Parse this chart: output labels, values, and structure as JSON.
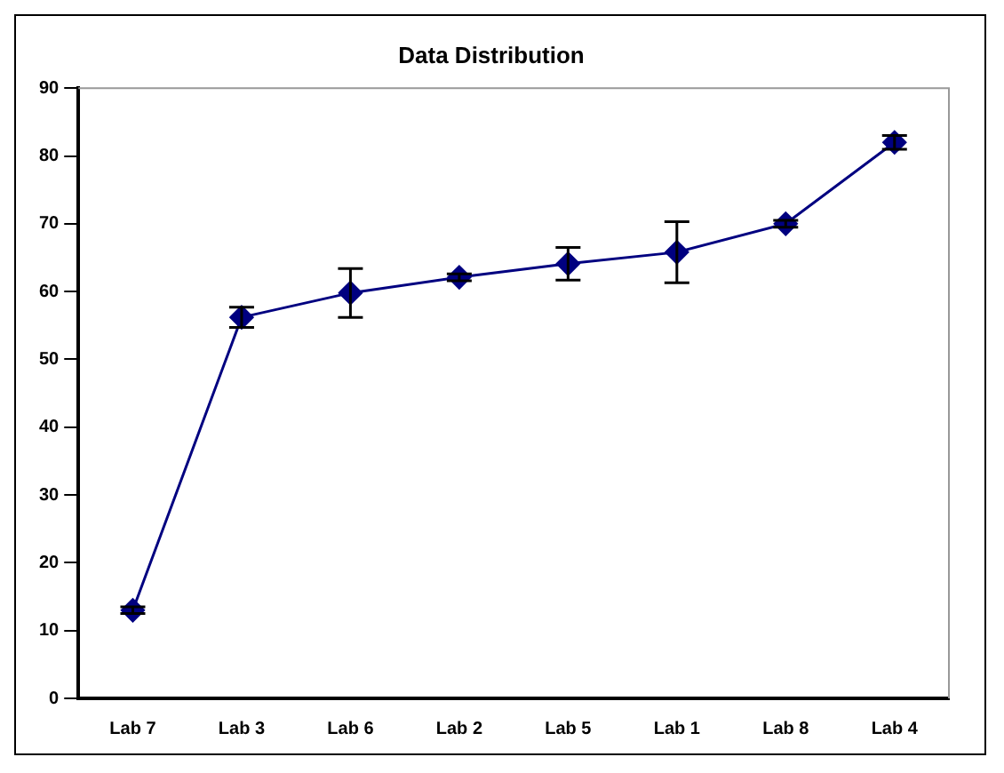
{
  "chart_data": {
    "type": "line",
    "title": "Data Distribution",
    "categories": [
      "Lab 7",
      "Lab 3",
      "Lab 6",
      "Lab 2",
      "Lab 5",
      "Lab 1",
      "Lab 8",
      "Lab 4"
    ],
    "series": [
      {
        "color": "#000080",
        "values": [
          13,
          56.2,
          59.8,
          62.1,
          64.1,
          65.8,
          70,
          82
        ],
        "errors": [
          0.5,
          1.5,
          3.6,
          0.5,
          2.4,
          4.5,
          0.5,
          1
        ]
      }
    ],
    "ylim": [
      0,
      90
    ],
    "yticks": [
      0,
      10,
      20,
      30,
      40,
      50,
      60,
      70,
      80,
      90
    ],
    "grid": false,
    "legend": false,
    "marker": "diamond",
    "line_style": "solid"
  }
}
